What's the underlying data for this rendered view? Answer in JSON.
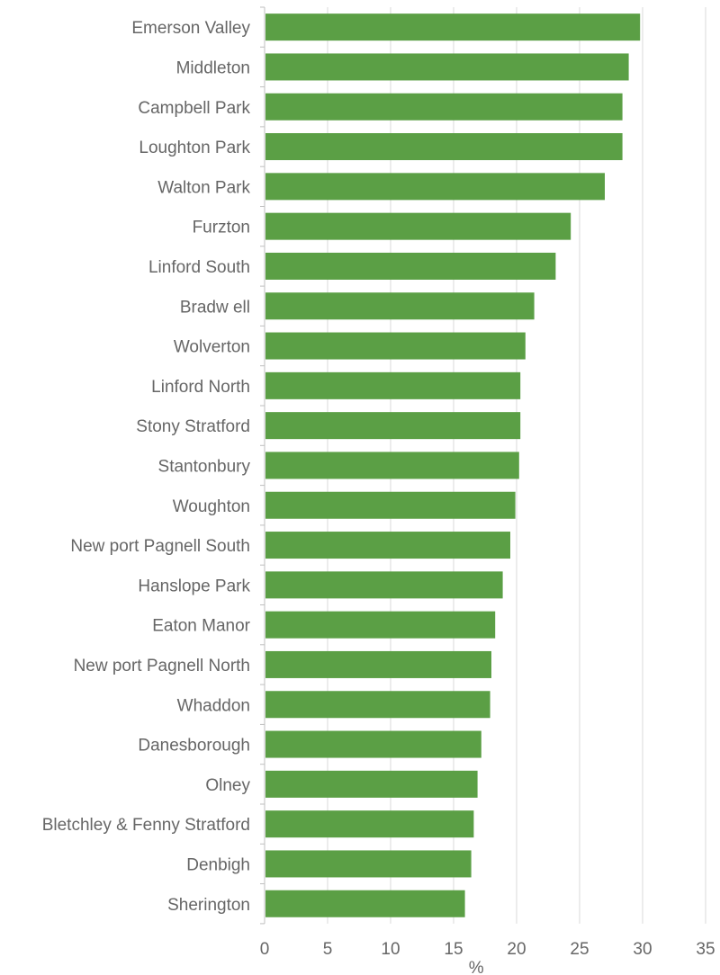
{
  "chart_data": {
    "type": "bar",
    "orientation": "horizontal",
    "categories": [
      "Emerson Valley",
      "Middleton",
      "Campbell Park",
      "Loughton Park",
      "Walton Park",
      "Furzton",
      "Linford South",
      "Bradw ell",
      "Wolverton",
      "Linford North",
      "Stony Stratford",
      "Stantonbury",
      "Woughton",
      "New port Pagnell South",
      "Hanslope Park",
      "Eaton Manor",
      "New port Pagnell North",
      "Whaddon",
      "Danesborough",
      "Olney",
      "Bletchley & Fenny Stratford",
      "Denbigh",
      "Sherington"
    ],
    "values": [
      29.8,
      28.9,
      28.4,
      28.4,
      27.0,
      24.3,
      23.1,
      21.4,
      20.7,
      20.3,
      20.3,
      20.2,
      19.9,
      19.5,
      18.9,
      18.3,
      18.0,
      17.9,
      17.2,
      16.9,
      16.6,
      16.4,
      15.9
    ],
    "xlim": [
      0,
      35
    ],
    "xticks": [
      "0",
      "5",
      "10",
      "15",
      "20",
      "25",
      "30",
      "35"
    ],
    "xlabel": "%",
    "grid": true,
    "colors": {
      "bar": "#5b9f45",
      "grid": "#d9d9d9",
      "text": "#666666"
    }
  }
}
